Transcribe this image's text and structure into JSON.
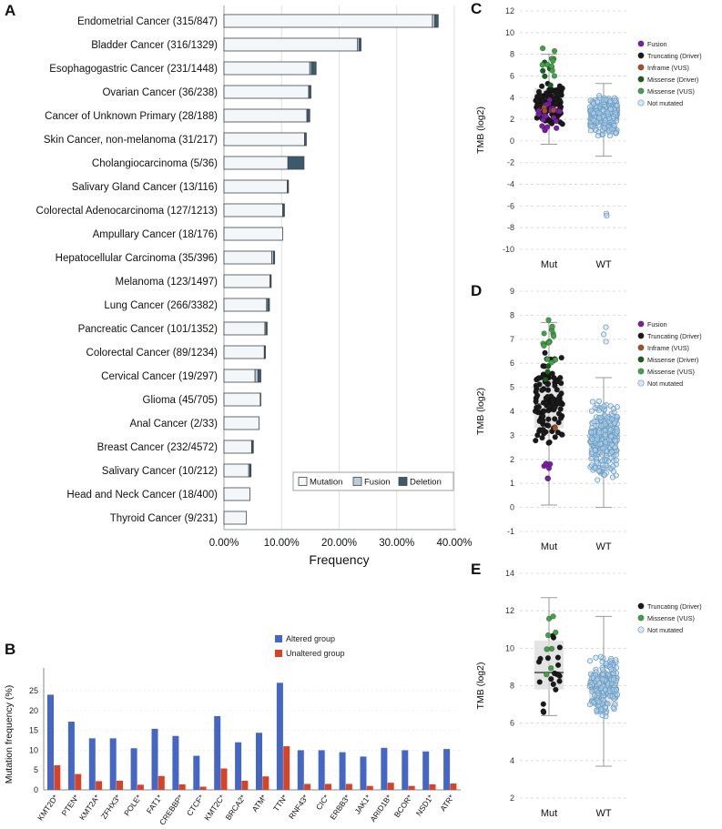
{
  "figure": {
    "panel_labels": {
      "A": "A",
      "B": "B",
      "C": "C",
      "D": "D",
      "E": "E"
    }
  },
  "chart_data": [
    {
      "id": "A",
      "type": "bar",
      "orientation": "horizontal",
      "stacked": true,
      "xlabel": "Frequency",
      "xlim": [
        0,
        40
      ],
      "xticks": [
        0,
        10,
        20,
        30,
        40
      ],
      "xtick_labels": [
        "0.00%",
        "10.00%",
        "20.00%",
        "30.00%",
        "40.00%"
      ],
      "categories": [
        "Endometrial Cancer (315/847)",
        "Bladder Cancer (316/1329)",
        "Esophagogastric Cancer (231/1448)",
        "Ovarian Cancer (36/238)",
        "Cancer of Unknown Primary (28/188)",
        "Skin Cancer, non-melanoma (31/217)",
        "Cholangiocarcinoma (5/36)",
        "Salivary Gland Cancer (13/116)",
        "Colorectal Adenocarcinoma (127/1213)",
        "Ampullary Cancer (18/176)",
        "Hepatocellular Carcinoma (35/396)",
        "Melanoma (123/1497)",
        "Lung Cancer (266/3382)",
        "Pancreatic Cancer (101/1352)",
        "Colorectal Cancer (89/1234)",
        "Cervical Cancer (19/297)",
        "Glioma (45/705)",
        "Anal Cancer (2/33)",
        "Breast Cancer (232/4572)",
        "Salivary Cancer (10/212)",
        "Head and Neck Cancer (18/400)",
        "Thyroid Cancer (9/231)"
      ],
      "series": [
        {
          "name": "Mutation",
          "color": "#f3f7f9",
          "values": [
            36.2,
            23.2,
            14.9,
            14.7,
            14.4,
            14.0,
            11.1,
            11.0,
            10.2,
            10.2,
            8.3,
            8.0,
            7.4,
            7.1,
            7.0,
            5.4,
            6.3,
            6.1,
            4.8,
            4.3,
            4.5,
            3.9
          ]
        },
        {
          "name": "Fusion",
          "color": "#b9cdd9",
          "values": [
            0.4,
            0.3,
            0.3,
            0.0,
            0.0,
            0.0,
            0.0,
            0.0,
            0.1,
            0.0,
            0.3,
            0.1,
            0.2,
            0.2,
            0.1,
            0.5,
            0.0,
            0.0,
            0.1,
            0.2,
            0.0,
            0.0
          ]
        },
        {
          "name": "Deletion",
          "color": "#3c5a6b",
          "values": [
            0.6,
            0.3,
            0.8,
            0.4,
            0.5,
            0.3,
            2.8,
            0.2,
            0.2,
            0.0,
            0.2,
            0.1,
            0.3,
            0.2,
            0.1,
            0.5,
            0.1,
            0.0,
            0.2,
            0.2,
            0.0,
            0.0
          ]
        }
      ],
      "legend_position": "bottom-right-inside"
    },
    {
      "id": "B",
      "type": "bar",
      "orientation": "vertical",
      "grouped": true,
      "ylabel": "Mutation frequency (%)",
      "ylim": [
        0,
        28
      ],
      "yticks": [
        0,
        5,
        10,
        15,
        20,
        25
      ],
      "categories": [
        "KMT2D*",
        "PTEN*",
        "KMT2A*",
        "ZFHX3*",
        "POLE*",
        "FAT1*",
        "CREBBP*",
        "CTCF*",
        "KMT2C*",
        "BRCA2*",
        "ATM*",
        "TTN*",
        "RNF43*",
        "CIC*",
        "ERBB3*",
        "JAK1*",
        "ARID1B*",
        "BCOR*",
        "NSD1*",
        "ATR*"
      ],
      "series": [
        {
          "name": "Altered group",
          "color": "#4466c4",
          "values": [
            24.0,
            17.2,
            13.0,
            13.0,
            10.5,
            15.4,
            13.6,
            8.6,
            18.6,
            12.0,
            14.4,
            27.0,
            10.0,
            10.0,
            9.5,
            8.4,
            10.6,
            10.0,
            9.7,
            10.3
          ]
        },
        {
          "name": "Unaltered group",
          "color": "#d64428",
          "values": [
            6.2,
            4.0,
            2.2,
            2.3,
            1.3,
            3.5,
            1.4,
            0.8,
            5.4,
            2.3,
            3.4,
            11.0,
            1.5,
            1.5,
            1.5,
            1.0,
            1.8,
            1.0,
            1.4,
            1.6
          ]
        }
      ],
      "legend_position": "top-right"
    },
    {
      "id": "C",
      "type": "scatter",
      "subtype": "strip-box",
      "ylabel": "TMB (log2)",
      "ylim": [
        -10,
        12
      ],
      "ytick_step": 2,
      "xcategories": [
        "Mut",
        "WT"
      ],
      "groups": [
        {
          "name": "Mut",
          "box": {
            "q1": 2.3,
            "median": 3.2,
            "q3": 4.9,
            "lo": -0.3,
            "hi": 8.0
          },
          "clusters": [
            {
              "category": "Truncating (Driver)",
              "n": 95,
              "center": 3.4,
              "spread": 1.5,
              "min": -0.3,
              "max": 8.9
            },
            {
              "category": "Fusion",
              "n": 22,
              "center": 2.4,
              "spread": 1.3,
              "min": 0.2,
              "max": 4.8
            },
            {
              "category": "Inframe (VUS)",
              "n": 3,
              "center": 3.0,
              "spread": 0.8,
              "min": 2.0,
              "max": 4.2
            },
            {
              "category": "Missense (Driver)",
              "n": 5,
              "center": 6.2,
              "spread": 1.4,
              "min": 4.2,
              "max": 8.5
            },
            {
              "category": "Missense (VUS)",
              "n": 11,
              "center": 6.9,
              "spread": 1.3,
              "min": 4.6,
              "max": 9.0
            }
          ],
          "outliers": []
        },
        {
          "name": "WT",
          "box": {
            "q1": 1.6,
            "median": 2.1,
            "q3": 3.1,
            "lo": -1.4,
            "hi": 5.3
          },
          "clusters": [
            {
              "category": "Not mutated",
              "n": 250,
              "center": 2.3,
              "spread": 1.25,
              "min": -1.4,
              "max": 7.9
            }
          ],
          "outliers": [
            {
              "category": "Not mutated",
              "values": [
                -6.7,
                -6.9
              ]
            }
          ]
        }
      ],
      "legend": [
        {
          "label": "Fusion",
          "color": "#7b1fa2"
        },
        {
          "label": "Truncating (Driver)",
          "color": "#1a1a1a"
        },
        {
          "label": "Inframe (VUS)",
          "color": "#a0522d"
        },
        {
          "label": "Missense (Driver)",
          "color": "#1b5e20"
        },
        {
          "label": "Missense (VUS)",
          "color": "#43a047"
        },
        {
          "label": "Not mutated",
          "color": "#b9d5ec"
        }
      ]
    },
    {
      "id": "D",
      "type": "scatter",
      "subtype": "strip-box",
      "ylabel": "TMB (log2)",
      "ylim": [
        -1,
        9
      ],
      "ytick_step": 1,
      "xcategories": [
        "Mut",
        "WT"
      ],
      "groups": [
        {
          "name": "Mut",
          "box": {
            "q1": 3.3,
            "median": 4.3,
            "q3": 5.4,
            "lo": 0.1,
            "hi": 7.7
          },
          "clusters": [
            {
              "category": "Truncating (Driver)",
              "n": 110,
              "center": 4.4,
              "spread": 1.3,
              "min": 0.0,
              "max": 7.2
            },
            {
              "category": "Fusion",
              "n": 6,
              "center": 1.9,
              "spread": 0.6,
              "min": 1.2,
              "max": 2.6
            },
            {
              "category": "Inframe (VUS)",
              "n": 2,
              "center": 3.5,
              "spread": 0.4,
              "min": 3.2,
              "max": 3.9
            },
            {
              "category": "Missense (Driver)",
              "n": 4,
              "center": 5.6,
              "spread": 0.8,
              "min": 4.6,
              "max": 6.6
            },
            {
              "category": "Missense (VUS)",
              "n": 14,
              "center": 6.9,
              "spread": 0.8,
              "min": 5.4,
              "max": 7.8
            }
          ],
          "outliers": []
        },
        {
          "name": "WT",
          "box": {
            "q1": 2.2,
            "median": 2.7,
            "q3": 3.4,
            "lo": 0.0,
            "hi": 5.4
          },
          "clusters": [
            {
              "category": "Not mutated",
              "n": 260,
              "center": 2.8,
              "spread": 1.1,
              "min": 0.0,
              "max": 7.5
            }
          ],
          "outliers": [
            {
              "category": "Not mutated",
              "values": [
                7.5,
                7.2,
                6.9
              ]
            }
          ]
        }
      ],
      "legend": [
        {
          "label": "Fusion",
          "color": "#7b1fa2"
        },
        {
          "label": "Truncating (Driver)",
          "color": "#1a1a1a"
        },
        {
          "label": "Inframe (VUS)",
          "color": "#a0522d"
        },
        {
          "label": "Missense (Driver)",
          "color": "#1b5e20"
        },
        {
          "label": "Missense (VUS)",
          "color": "#43a047"
        },
        {
          "label": "Not mutated",
          "color": "#b9d5ec"
        }
      ]
    },
    {
      "id": "E",
      "type": "scatter",
      "subtype": "strip-box",
      "ylabel": "TMB (log2)",
      "ylim": [
        2,
        14
      ],
      "ytick_step": 2,
      "xcategories": [
        "Mut",
        "WT"
      ],
      "groups": [
        {
          "name": "Mut",
          "box": {
            "q1": 7.8,
            "median": 8.7,
            "q3": 10.4,
            "lo": 6.4,
            "hi": 12.7
          },
          "clusters": [
            {
              "category": "Truncating (Driver)",
              "n": 20,
              "center": 8.8,
              "spread": 1.5,
              "min": 6.4,
              "max": 11.5
            },
            {
              "category": "Missense (VUS)",
              "n": 8,
              "center": 10.6,
              "spread": 1.6,
              "min": 8.6,
              "max": 13.0
            }
          ],
          "outliers": []
        },
        {
          "name": "WT",
          "box": {
            "q1": 6.9,
            "median": 7.9,
            "q3": 8.7,
            "lo": 3.7,
            "hi": 11.7
          },
          "clusters": [
            {
              "category": "Not mutated",
              "n": 210,
              "center": 7.9,
              "spread": 1.2,
              "min": 3.7,
              "max": 11.7
            }
          ],
          "outliers": []
        }
      ],
      "legend": [
        {
          "label": "Truncating (Driver)",
          "color": "#1a1a1a"
        },
        {
          "label": "Missense (VUS)",
          "color": "#43a047"
        },
        {
          "label": "Not mutated",
          "color": "#b9d5ec"
        }
      ]
    }
  ]
}
